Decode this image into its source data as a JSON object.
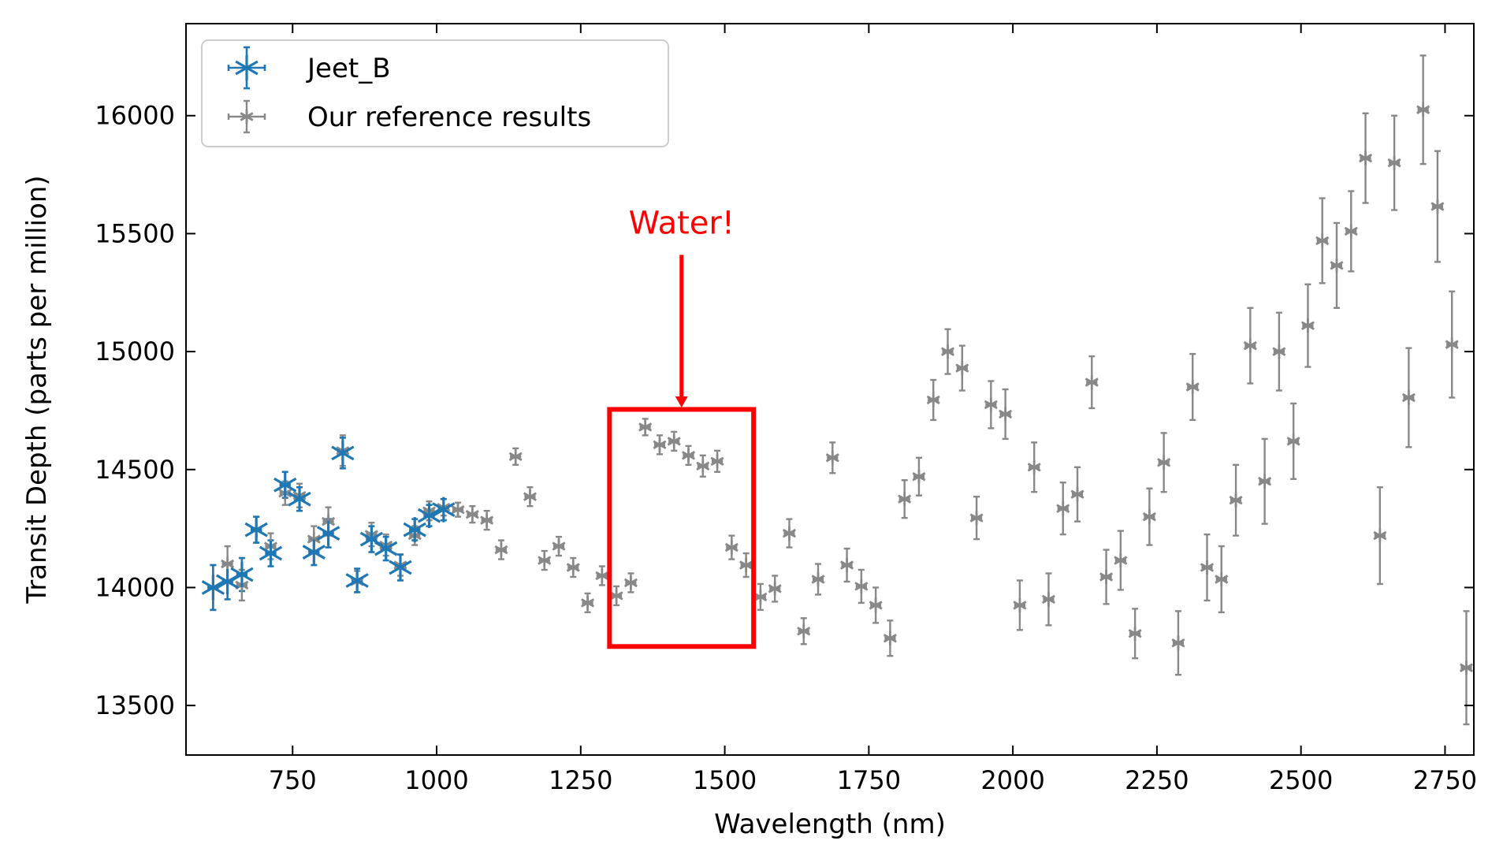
{
  "chart_data": {
    "type": "scatter",
    "title": "",
    "xlabel": "Wavelength (nm)",
    "ylabel": "Transit Depth (parts per million)",
    "xlim": [
      565,
      2800
    ],
    "ylim": [
      13290,
      16390
    ],
    "xticks": [
      750,
      1000,
      1250,
      1500,
      1750,
      2000,
      2250,
      2500,
      2750
    ],
    "yticks": [
      13500,
      14000,
      14500,
      15000,
      15500,
      16000
    ],
    "grid": false,
    "legend_position": "top-left",
    "series": [
      {
        "name": "Jeet_B",
        "color": "#1f77b4",
        "marker": "asterisk",
        "x_err": 8,
        "points": [
          [
            612,
            14000,
            95
          ],
          [
            637,
            14025,
            75
          ],
          [
            662,
            14055,
            70
          ],
          [
            687,
            14245,
            55
          ],
          [
            712,
            14145,
            55
          ],
          [
            737,
            14435,
            55
          ],
          [
            762,
            14375,
            50
          ],
          [
            787,
            14150,
            55
          ],
          [
            812,
            14230,
            60
          ],
          [
            837,
            14570,
            65
          ],
          [
            862,
            14030,
            50
          ],
          [
            887,
            14205,
            55
          ],
          [
            912,
            14165,
            50
          ],
          [
            937,
            14085,
            55
          ],
          [
            962,
            14245,
            45
          ],
          [
            987,
            14305,
            45
          ],
          [
            1012,
            14330,
            45
          ]
        ]
      },
      {
        "name": "Our reference results",
        "color": "#888888",
        "marker": "asterisk-small",
        "x_err": 8,
        "points": [
          [
            612,
            14000,
            95
          ],
          [
            637,
            14100,
            75
          ],
          [
            662,
            14010,
            65
          ],
          [
            687,
            14245,
            55
          ],
          [
            712,
            14175,
            55
          ],
          [
            737,
            14400,
            50
          ],
          [
            762,
            14390,
            50
          ],
          [
            787,
            14205,
            55
          ],
          [
            812,
            14280,
            60
          ],
          [
            837,
            14580,
            65
          ],
          [
            862,
            14025,
            45
          ],
          [
            887,
            14225,
            50
          ],
          [
            912,
            14180,
            45
          ],
          [
            937,
            14095,
            45
          ],
          [
            962,
            14220,
            40
          ],
          [
            987,
            14325,
            40
          ],
          [
            1012,
            14340,
            35
          ],
          [
            1037,
            14330,
            30
          ],
          [
            1062,
            14310,
            35
          ],
          [
            1087,
            14285,
            40
          ],
          [
            1112,
            14160,
            40
          ],
          [
            1137,
            14555,
            35
          ],
          [
            1162,
            14385,
            40
          ],
          [
            1187,
            14115,
            40
          ],
          [
            1212,
            14175,
            40
          ],
          [
            1237,
            14085,
            40
          ],
          [
            1262,
            13935,
            40
          ],
          [
            1287,
            14050,
            40
          ],
          [
            1312,
            13965,
            40
          ],
          [
            1337,
            14020,
            40
          ],
          [
            1362,
            14680,
            35
          ],
          [
            1387,
            14605,
            40
          ],
          [
            1412,
            14620,
            40
          ],
          [
            1437,
            14560,
            40
          ],
          [
            1462,
            14515,
            45
          ],
          [
            1487,
            14535,
            45
          ],
          [
            1512,
            14170,
            50
          ],
          [
            1537,
            14095,
            50
          ],
          [
            1562,
            13960,
            55
          ],
          [
            1587,
            13995,
            55
          ],
          [
            1612,
            14230,
            60
          ],
          [
            1637,
            13815,
            55
          ],
          [
            1662,
            14035,
            65
          ],
          [
            1687,
            14550,
            65
          ],
          [
            1712,
            14095,
            70
          ],
          [
            1737,
            14005,
            70
          ],
          [
            1762,
            13925,
            75
          ],
          [
            1787,
            13785,
            75
          ],
          [
            1812,
            14375,
            80
          ],
          [
            1837,
            14470,
            80
          ],
          [
            1862,
            14795,
            85
          ],
          [
            1887,
            15000,
            95
          ],
          [
            1912,
            14930,
            95
          ],
          [
            1937,
            14295,
            90
          ],
          [
            1962,
            14775,
            100
          ],
          [
            1987,
            14735,
            105
          ],
          [
            2012,
            13925,
            105
          ],
          [
            2037,
            14510,
            105
          ],
          [
            2062,
            13950,
            110
          ],
          [
            2087,
            14335,
            110
          ],
          [
            2112,
            14395,
            115
          ],
          [
            2137,
            14870,
            110
          ],
          [
            2162,
            14045,
            115
          ],
          [
            2187,
            14115,
            125
          ],
          [
            2212,
            13805,
            105
          ],
          [
            2237,
            14300,
            120
          ],
          [
            2262,
            14530,
            125
          ],
          [
            2287,
            13765,
            135
          ],
          [
            2312,
            14850,
            140
          ],
          [
            2337,
            14085,
            140
          ],
          [
            2362,
            14035,
            140
          ],
          [
            2387,
            14370,
            150
          ],
          [
            2412,
            15025,
            160
          ],
          [
            2437,
            14450,
            180
          ],
          [
            2462,
            15000,
            165
          ],
          [
            2487,
            14620,
            160
          ],
          [
            2512,
            15110,
            175
          ],
          [
            2537,
            15470,
            180
          ],
          [
            2562,
            15365,
            180
          ],
          [
            2587,
            15510,
            170
          ],
          [
            2612,
            15820,
            190
          ],
          [
            2637,
            14220,
            205
          ],
          [
            2662,
            15800,
            200
          ],
          [
            2687,
            14805,
            210
          ],
          [
            2712,
            16025,
            230
          ],
          [
            2737,
            15615,
            235
          ],
          [
            2762,
            15030,
            225
          ],
          [
            2787,
            13660,
            240
          ]
        ]
      }
    ],
    "annotation": {
      "text": "Water!",
      "color": "#ff0000",
      "arrow_x": 1425,
      "arrow_from_y": 15410,
      "arrow_to_y": 14770,
      "text_x": 1425,
      "text_y": 15500,
      "box": {
        "x0": 1300,
        "x1": 1550,
        "y0": 13750,
        "y1": 14755
      }
    }
  }
}
